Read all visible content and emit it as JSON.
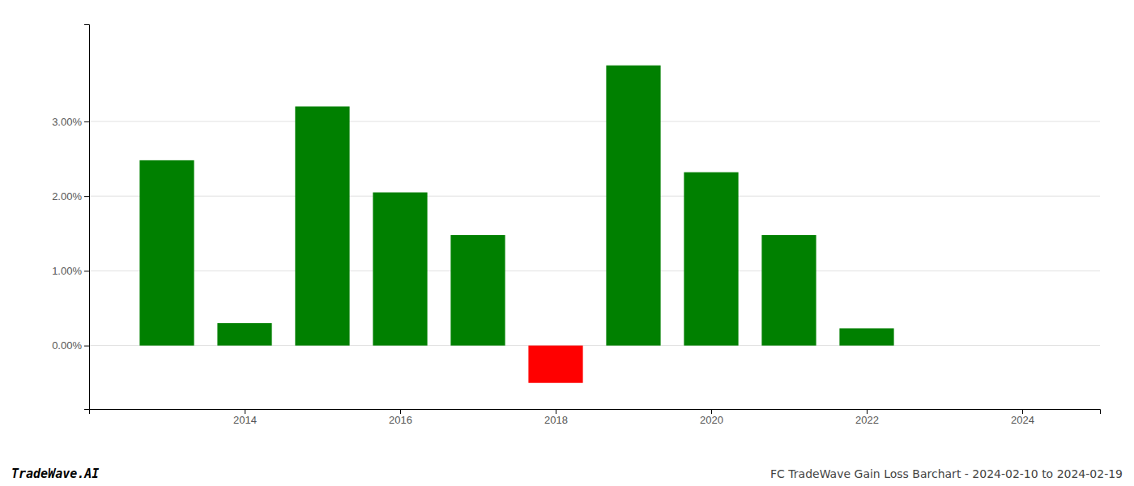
{
  "chart_data": {
    "type": "bar",
    "title": "FC TradeWave Gain Loss Barchart - 2024-02-10 to 2024-02-19",
    "annotations": [
      "TradeWave.AI"
    ],
    "x": [
      2013,
      2014,
      2015,
      2016,
      2017,
      2018,
      2019,
      2020,
      2021,
      2022,
      2023
    ],
    "values": [
      0.0248,
      0.003,
      0.032,
      0.0205,
      0.0148,
      -0.005,
      0.0375,
      0.0232,
      0.0148,
      0.0023,
      0.0
    ],
    "colors": [
      "#008000",
      "#008000",
      "#008000",
      "#008000",
      "#008000",
      "#ff0000",
      "#008000",
      "#008000",
      "#008000",
      "#008000",
      "#008000"
    ],
    "xlim": [
      2012.0,
      2025.0
    ],
    "xticks": [
      2014,
      2016,
      2018,
      2020,
      2022,
      2024
    ],
    "ylim": [
      -0.0085,
      0.043
    ],
    "yticks": [
      {
        "value": 0.0,
        "label": "0.00%"
      },
      {
        "value": 0.01,
        "label": "1.00%"
      },
      {
        "value": 0.02,
        "label": "2.00%"
      },
      {
        "value": 0.03,
        "label": "3.00%"
      }
    ],
    "grid": true
  }
}
